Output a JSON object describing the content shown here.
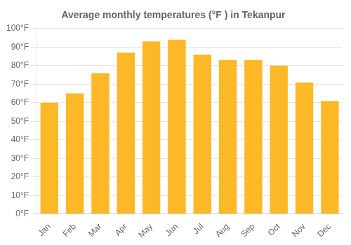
{
  "chart_data": {
    "type": "bar",
    "title": "Average monthly temperatures (°F ) in Tekanpur",
    "categories": [
      "Jan",
      "Feb",
      "Mar",
      "Apr",
      "May",
      "Jun",
      "Jul",
      "Aug",
      "Sep",
      "Oct",
      "Nov",
      "Dec"
    ],
    "values": [
      60,
      65,
      76,
      87,
      93,
      94,
      86,
      83,
      83,
      80,
      71,
      61
    ],
    "color": "#FDB827",
    "ylim": [
      0,
      100
    ],
    "yticks": [
      {
        "value": 0,
        "label": "0°F"
      },
      {
        "value": 10,
        "label": "10°F"
      },
      {
        "value": 20,
        "label": "20°F"
      },
      {
        "value": 30,
        "label": "30°F"
      },
      {
        "value": 40,
        "label": "40°F"
      },
      {
        "value": 50,
        "label": "50°F"
      },
      {
        "value": 60,
        "label": "60°F"
      },
      {
        "value": 70,
        "label": "70°F"
      },
      {
        "value": 80,
        "label": "80°F"
      },
      {
        "value": 90,
        "label": "90°F"
      },
      {
        "value": 100,
        "label": "100°F"
      }
    ],
    "grid": true
  }
}
